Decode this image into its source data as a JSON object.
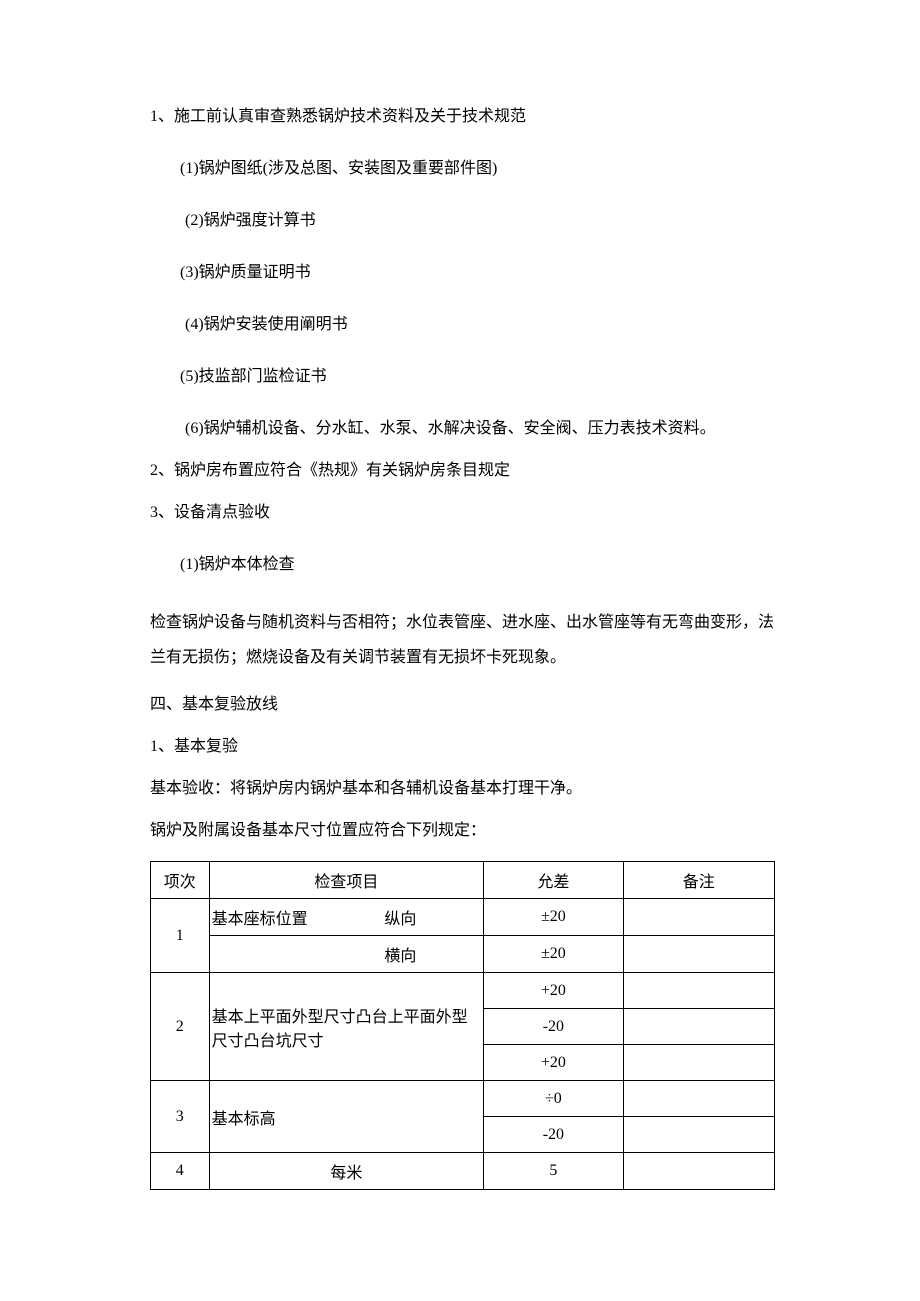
{
  "lines": {
    "l1": "1、施工前认真审查熟悉锅炉技术资料及关于技术规范",
    "l2": "(1)锅炉图纸(涉及总图、安装图及重要部件图)",
    "l3": "(2)锅炉强度计算书",
    "l4": "(3)锅炉质量证明书",
    "l5": "(4)锅炉安装使用阐明书",
    "l6": "(5)技监部门监检证书",
    "l7": "(6)锅炉辅机设备、分水缸、水泵、水解决设备、安全阀、压力表技术资料。",
    "l8": "2、锅炉房布置应符合《热规》有关锅炉房条目规定",
    "l9": "3、设备清点验收",
    "l10": "(1)锅炉本体检查",
    "l11": "检查锅炉设备与随机资料与否相符；水位表管座、进水座、出水管座等有无弯曲变形，法兰有无损伤；燃烧设备及有关调节装置有无损坏卡死现象。",
    "l12": "四、基本复验放线",
    "l13": "1、基本复验",
    "l14": "基本验收：将锅炉房内锅炉基本和各辅机设备基本打理干净。",
    "l15": "锅炉及附属设备基本尺寸位置应符合下列规定："
  },
  "table": {
    "headers": {
      "c1": "项次",
      "c2": "检查项目",
      "c3": "允差",
      "c4": "备注"
    },
    "r1": {
      "num": "1",
      "item": "基本座标位置",
      "sub1": "纵向",
      "sub2": "横向",
      "tol1": "±20",
      "tol2": "±20"
    },
    "r2": {
      "num": "2",
      "item": "基本上平面外型尺寸凸台上平面外型尺寸凸台坑尺寸",
      "tol1": "+20",
      "tol2": "-20",
      "tol3": "+20"
    },
    "r3": {
      "num": "3",
      "item": "基本标高",
      "tol1": "÷0",
      "tol2": "-20"
    },
    "r4": {
      "num": "4",
      "item": "每米",
      "tol1": "5"
    }
  }
}
